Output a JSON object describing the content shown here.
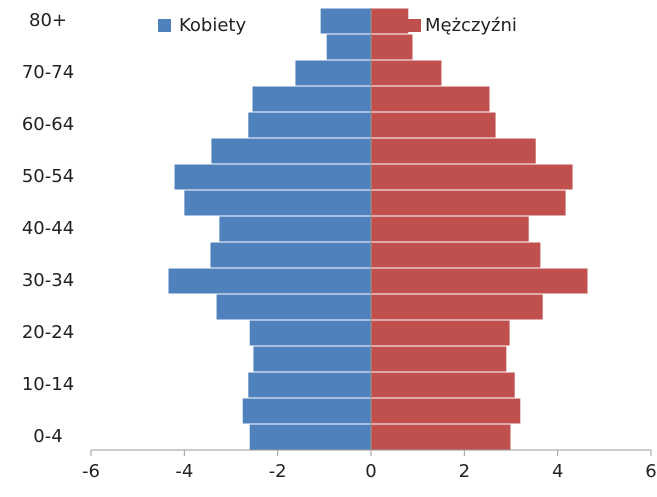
{
  "chart_data": {
    "type": "pyramid",
    "categories": [
      "0-4",
      null,
      "10-14",
      null,
      "20-24",
      null,
      "30-34",
      null,
      "40-44",
      null,
      "50-54",
      null,
      "60-64",
      null,
      "70-74",
      null,
      "80+"
    ],
    "series": [
      {
        "name": "Kobiety",
        "color": "#4f81bd",
        "values": [
          -2.61,
          -2.76,
          -2.64,
          -2.53,
          -2.61,
          -3.32,
          -4.35,
          -3.45,
          -3.26,
          -4.01,
          -4.22,
          -3.43,
          -2.64,
          -2.55,
          -1.63,
          -0.96,
          -1.09
        ]
      },
      {
        "name": "Mężczyźni",
        "color": "#c0504d",
        "values": [
          3.0,
          3.21,
          3.09,
          2.91,
          2.98,
          3.69,
          4.65,
          3.64,
          3.39,
          4.18,
          4.33,
          3.54,
          2.68,
          2.55,
          1.52,
          0.9,
          0.81
        ]
      }
    ],
    "xlim": [
      -6,
      6
    ],
    "xticks": [
      -6,
      -4,
      -2,
      0,
      2,
      4,
      6
    ]
  }
}
